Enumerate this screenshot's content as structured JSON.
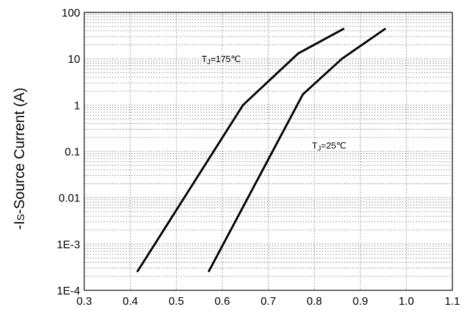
{
  "chart_data": {
    "type": "line",
    "title": "",
    "xlabel": "",
    "ylabel_prefix": "-I",
    "ylabel_sub": "S",
    "ylabel_rest": "-Source Current (A)",
    "xlim": [
      0.3,
      1.1
    ],
    "ylim": [
      0.0001,
      100
    ],
    "yscale": "log",
    "grid": true,
    "x_ticks": [
      "0.3",
      "0.4",
      "0.5",
      "0.6",
      "0.7",
      "0.8",
      "0.9",
      "1.0",
      "1.1"
    ],
    "y_ticks": [
      "1E-4",
      "1E-3",
      "0.01",
      "0.1",
      "1",
      "10",
      "100"
    ],
    "series": [
      {
        "name": "TJ=175℃",
        "label_main": "T",
        "label_sub": "J",
        "label_rest": "=175℃",
        "x": [
          0.415,
          0.645,
          0.765,
          0.865
        ],
        "y": [
          0.00025,
          1.0,
          13.0,
          45.0
        ]
      },
      {
        "name": "TJ=25℃",
        "label_main": "T",
        "label_sub": "J",
        "label_rest": "=25℃",
        "x": [
          0.57,
          0.775,
          0.86,
          0.955
        ],
        "y": [
          0.00025,
          1.7,
          10.0,
          45.0
        ]
      }
    ]
  }
}
